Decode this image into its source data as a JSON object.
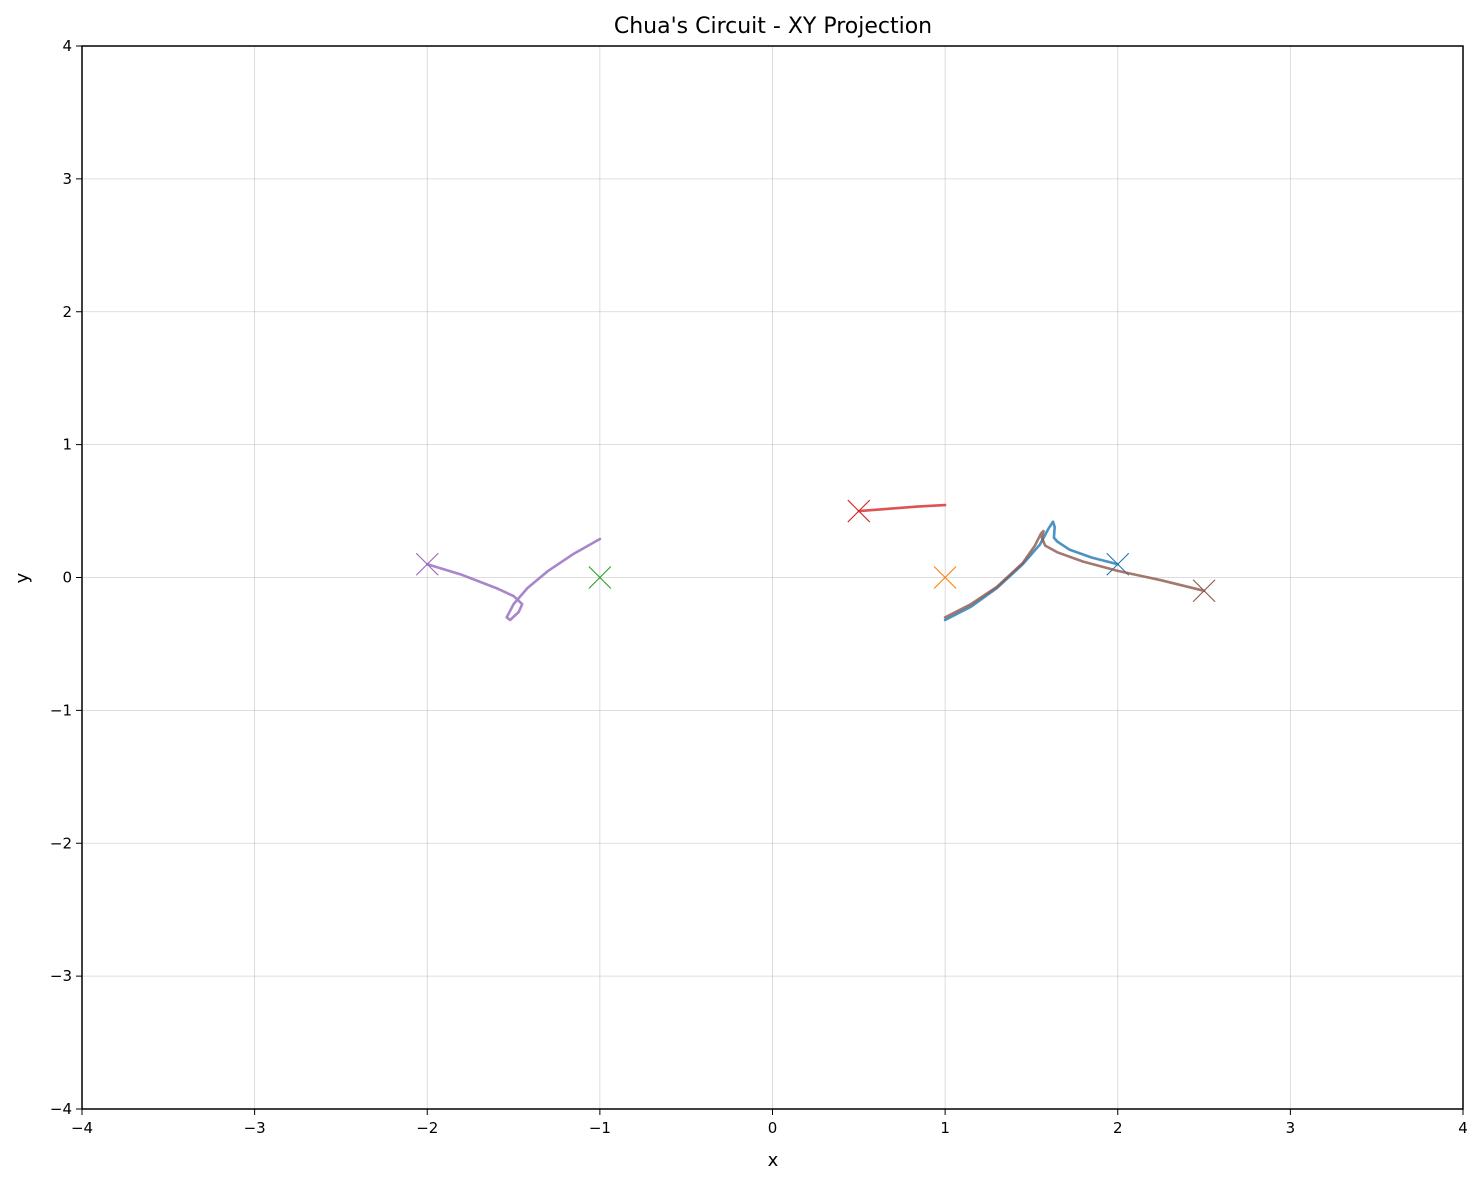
{
  "chart_data": {
    "type": "line",
    "title": "Chua's Circuit - XY Projection",
    "xlabel": "x",
    "ylabel": "y",
    "xlim": [
      -4,
      4
    ],
    "ylim": [
      -4,
      4
    ],
    "xticks": [
      -4,
      -3,
      -2,
      -1,
      0,
      1,
      2,
      3,
      4
    ],
    "yticks": [
      -4,
      -3,
      -2,
      -1,
      0,
      1,
      2,
      3,
      4
    ],
    "xtick_labels": [
      "−4",
      "−3",
      "−2",
      "−1",
      "0",
      "1",
      "2",
      "3",
      "4"
    ],
    "ytick_labels": [
      "−4",
      "−3",
      "−2",
      "−1",
      "0",
      "1",
      "2",
      "3",
      "4"
    ],
    "grid": true,
    "series": [
      {
        "color": "#1f77b4",
        "start": [
          1.0,
          -0.32
        ],
        "end": [
          2.0,
          0.1
        ],
        "points": [
          [
            1.0,
            -0.32
          ],
          [
            1.15,
            -0.22
          ],
          [
            1.3,
            -0.08
          ],
          [
            1.45,
            0.1
          ],
          [
            1.55,
            0.25
          ],
          [
            1.6,
            0.37
          ],
          [
            1.625,
            0.42
          ],
          [
            1.635,
            0.38
          ],
          [
            1.63,
            0.3
          ],
          [
            1.65,
            0.27
          ],
          [
            1.72,
            0.21
          ],
          [
            1.85,
            0.15
          ],
          [
            2.0,
            0.1
          ]
        ]
      },
      {
        "color": "#ff7f0e",
        "start": [
          1.0,
          0.0
        ],
        "end": [
          1.0,
          0.0
        ],
        "points": [
          [
            1.0,
            0.0
          ]
        ]
      },
      {
        "color": "#2ca02c",
        "start": [
          -1.0,
          0.0
        ],
        "end": [
          -1.0,
          0.0
        ],
        "points": [
          [
            -1.0,
            0.0
          ]
        ]
      },
      {
        "color": "#d62728",
        "start": [
          1.0,
          0.55
        ],
        "end": [
          0.5,
          0.5
        ],
        "points": [
          [
            1.0,
            0.545
          ],
          [
            0.85,
            0.535
          ],
          [
            0.7,
            0.52
          ],
          [
            0.5,
            0.5
          ]
        ]
      },
      {
        "color": "#9467bd",
        "start": [
          -1.0,
          0.3
        ],
        "end": [
          -2.0,
          0.1
        ],
        "points": [
          [
            -1.0,
            0.29
          ],
          [
            -1.15,
            0.18
          ],
          [
            -1.3,
            0.05
          ],
          [
            -1.42,
            -0.08
          ],
          [
            -1.5,
            -0.2
          ],
          [
            -1.54,
            -0.3
          ],
          [
            -1.52,
            -0.32
          ],
          [
            -1.47,
            -0.26
          ],
          [
            -1.45,
            -0.2
          ],
          [
            -1.5,
            -0.14
          ],
          [
            -1.6,
            -0.08
          ],
          [
            -1.8,
            0.02
          ],
          [
            -2.0,
            0.1
          ]
        ]
      },
      {
        "color": "#8c564b",
        "start": [
          1.0,
          -0.3
        ],
        "end": [
          2.5,
          -0.1
        ],
        "points": [
          [
            1.0,
            -0.3
          ],
          [
            1.15,
            -0.2
          ],
          [
            1.3,
            -0.07
          ],
          [
            1.45,
            0.11
          ],
          [
            1.52,
            0.24
          ],
          [
            1.555,
            0.33
          ],
          [
            1.57,
            0.35
          ],
          [
            1.56,
            0.3
          ],
          [
            1.58,
            0.24
          ],
          [
            1.65,
            0.19
          ],
          [
            1.8,
            0.12
          ],
          [
            2.0,
            0.05
          ],
          [
            2.25,
            -0.02
          ],
          [
            2.5,
            -0.1
          ]
        ]
      }
    ]
  }
}
